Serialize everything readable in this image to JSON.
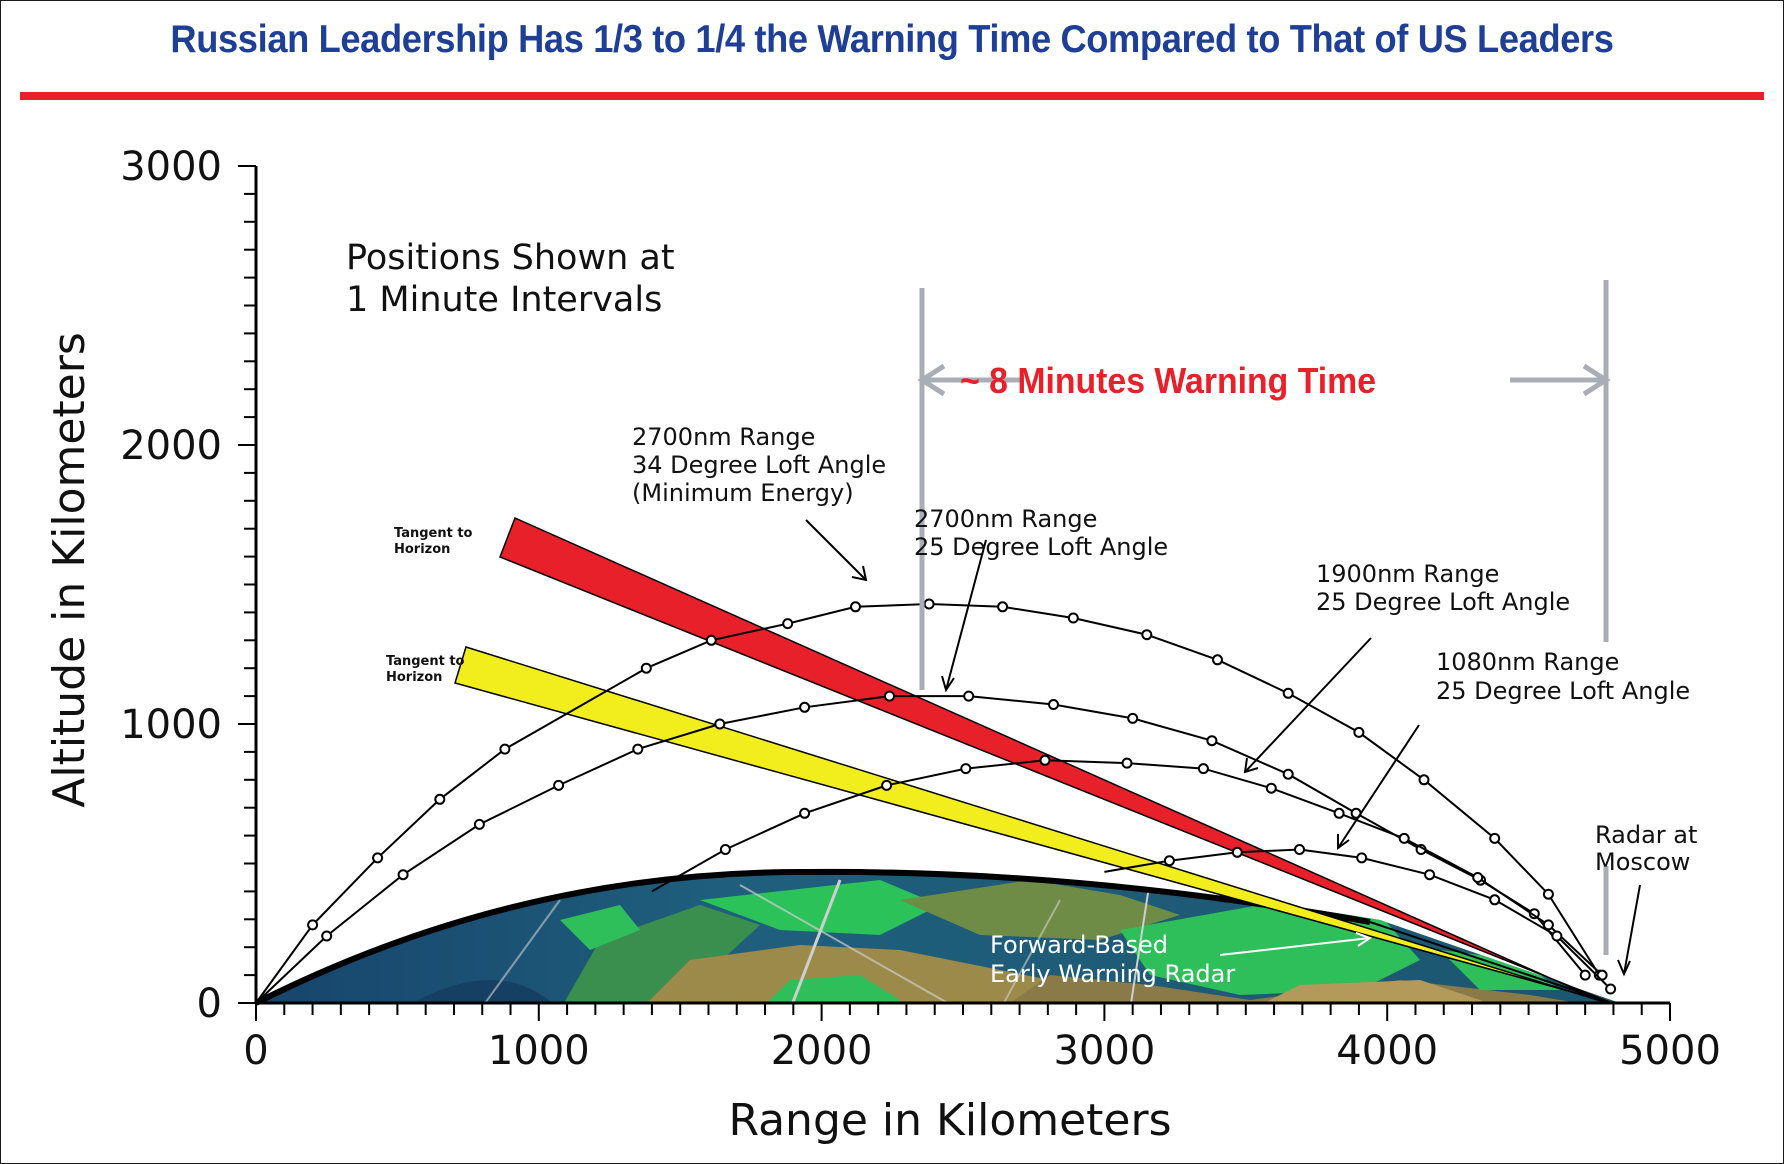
{
  "title": "Russian Leadership Has 1/3 to 1/4 the Warning Time Compared to That of US Leaders",
  "chart_data": {
    "type": "line",
    "xlabel": "Range in Kilometers",
    "ylabel": "Altitude in Kilometers",
    "xlim": [
      0,
      5000
    ],
    "ylim": [
      0,
      3000
    ],
    "xticks": [
      "0",
      "1000",
      "2000",
      "3000",
      "4000",
      "5000"
    ],
    "yticks": [
      "0",
      "1000",
      "2000",
      "3000"
    ],
    "series": [
      {
        "name": "2700nm Range 34 Degree Loft Angle (Minimum Energy)",
        "x": [
          0,
          200,
          430,
          650,
          880,
          1380,
          1610,
          1880,
          2120,
          2380,
          2640,
          2890,
          3150,
          3400,
          3650,
          3900,
          4130,
          4380,
          4570,
          4750
        ],
        "y": [
          0,
          280,
          520,
          730,
          910,
          1200,
          1300,
          1360,
          1420,
          1430,
          1420,
          1380,
          1320,
          1230,
          1110,
          970,
          800,
          590,
          390,
          100
        ]
      },
      {
        "name": "2700nm Range 25 Degree Loft Angle",
        "x": [
          0,
          250,
          520,
          790,
          1070,
          1350,
          1640,
          1940,
          2240,
          2520,
          2820,
          3100,
          3380,
          3650,
          3890,
          4120,
          4330,
          4520,
          4700
        ],
        "y": [
          0,
          240,
          460,
          640,
          780,
          910,
          1000,
          1060,
          1100,
          1100,
          1070,
          1020,
          940,
          820,
          680,
          550,
          440,
          320,
          100
        ]
      },
      {
        "name": "1900nm Range 25 Degree Loft Angle",
        "x": [
          1400,
          1660,
          1940,
          2230,
          2510,
          2790,
          3080,
          3350,
          3590,
          3830,
          4060,
          4320,
          4570,
          4760
        ],
        "y": [
          400,
          550,
          680,
          780,
          840,
          870,
          860,
          840,
          770,
          680,
          590,
          450,
          280,
          100
        ]
      },
      {
        "name": "1080nm Range 25 Degree Loft Angle",
        "x": [
          3000,
          3230,
          3470,
          3690,
          3910,
          4150,
          4380,
          4600,
          4790
        ],
        "y": [
          470,
          510,
          540,
          550,
          520,
          460,
          370,
          240,
          50
        ]
      }
    ],
    "annotations": {
      "positions_note_line1": "Positions Shown at",
      "positions_note_line2": "1 Minute Intervals",
      "warning_time": "~ 8 Minutes Warning Time",
      "label_a_line1": "2700nm Range",
      "label_a_line2": "34 Degree Loft Angle",
      "label_a_line3": "(Minimum Energy)",
      "label_b_line1": "2700nm Range",
      "label_b_line2": "25 Degree Loft Angle",
      "label_c_line1": "1900nm Range",
      "label_c_line2": "25 Degree Loft Angle",
      "label_d_line1": "1080nm Range",
      "label_d_line2": "25 Degree Loft Angle",
      "tangent_line1": "Tangent to",
      "tangent_line2": "Horizon",
      "radar_line1": "Radar at",
      "radar_line2": "Moscow",
      "forward_line1": "Forward-Based",
      "forward_line2": "Early Warning Radar"
    },
    "colors": {
      "title": "#1f3f96",
      "title_rule": "#e8202a",
      "red_band": "#e8202a",
      "yellow_band": "#f2ee1e",
      "warning_text": "#e8202a",
      "marker_lines": "#a8adb6"
    },
    "grid": false
  }
}
